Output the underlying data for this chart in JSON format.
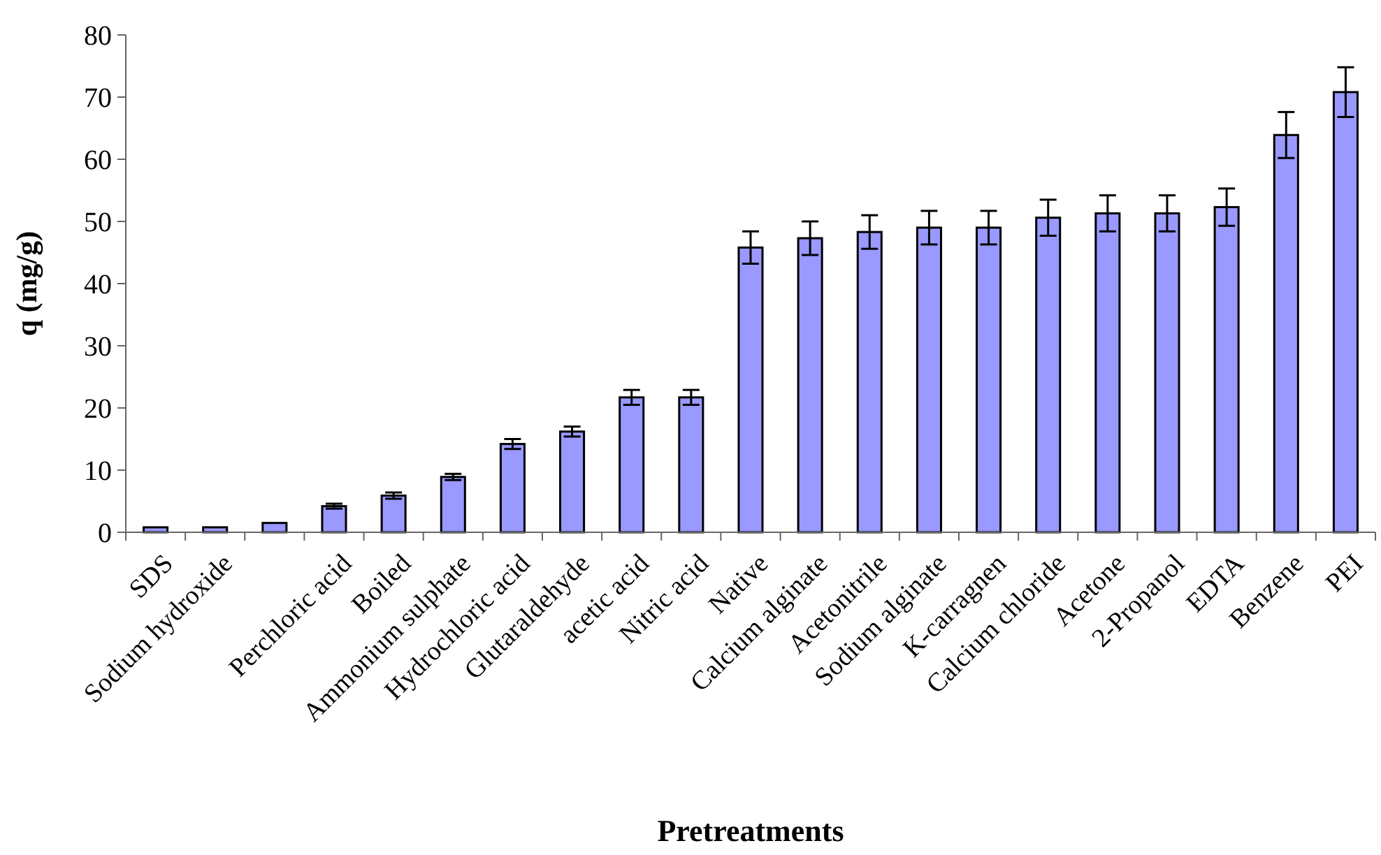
{
  "chart_data": {
    "type": "bar",
    "xlabel": "Pretreatments",
    "ylabel": "q (mg/g)",
    "categories": [
      "SDS",
      "Sodium hydroxide",
      null,
      "Perchloric acid",
      "Boiled",
      "Ammonium sulphate",
      "Hydrochloric acid",
      "Glutaraldehyde",
      "acetic acid",
      "Nitric acid",
      "Native",
      "Calcium alginate",
      "Acetonitrile",
      "Sodium alginate",
      "K-carragnen",
      "Calcium chloride",
      "Acetone",
      "2-Propanol",
      "EDTA",
      "Benzene",
      "PEI"
    ],
    "values": [
      0.8,
      0.8,
      1.5,
      4.2,
      5.9,
      8.9,
      14.2,
      16.2,
      21.7,
      21.7,
      45.8,
      47.3,
      48.3,
      49,
      49,
      50.6,
      51.3,
      51.3,
      52.3,
      63.9,
      70.8
    ],
    "errors": [
      null,
      null,
      null,
      0.4,
      0.5,
      0.5,
      0.8,
      0.8,
      1.2,
      1.2,
      2.6,
      2.7,
      2.7,
      2.7,
      2.7,
      2.9,
      2.9,
      2.9,
      3,
      3.7,
      4
    ],
    "color": "#9999ff",
    "ylim": [
      0,
      80
    ],
    "yticks": [
      0,
      10,
      20,
      30,
      40,
      50,
      60,
      70,
      80
    ],
    "grid": false
  }
}
